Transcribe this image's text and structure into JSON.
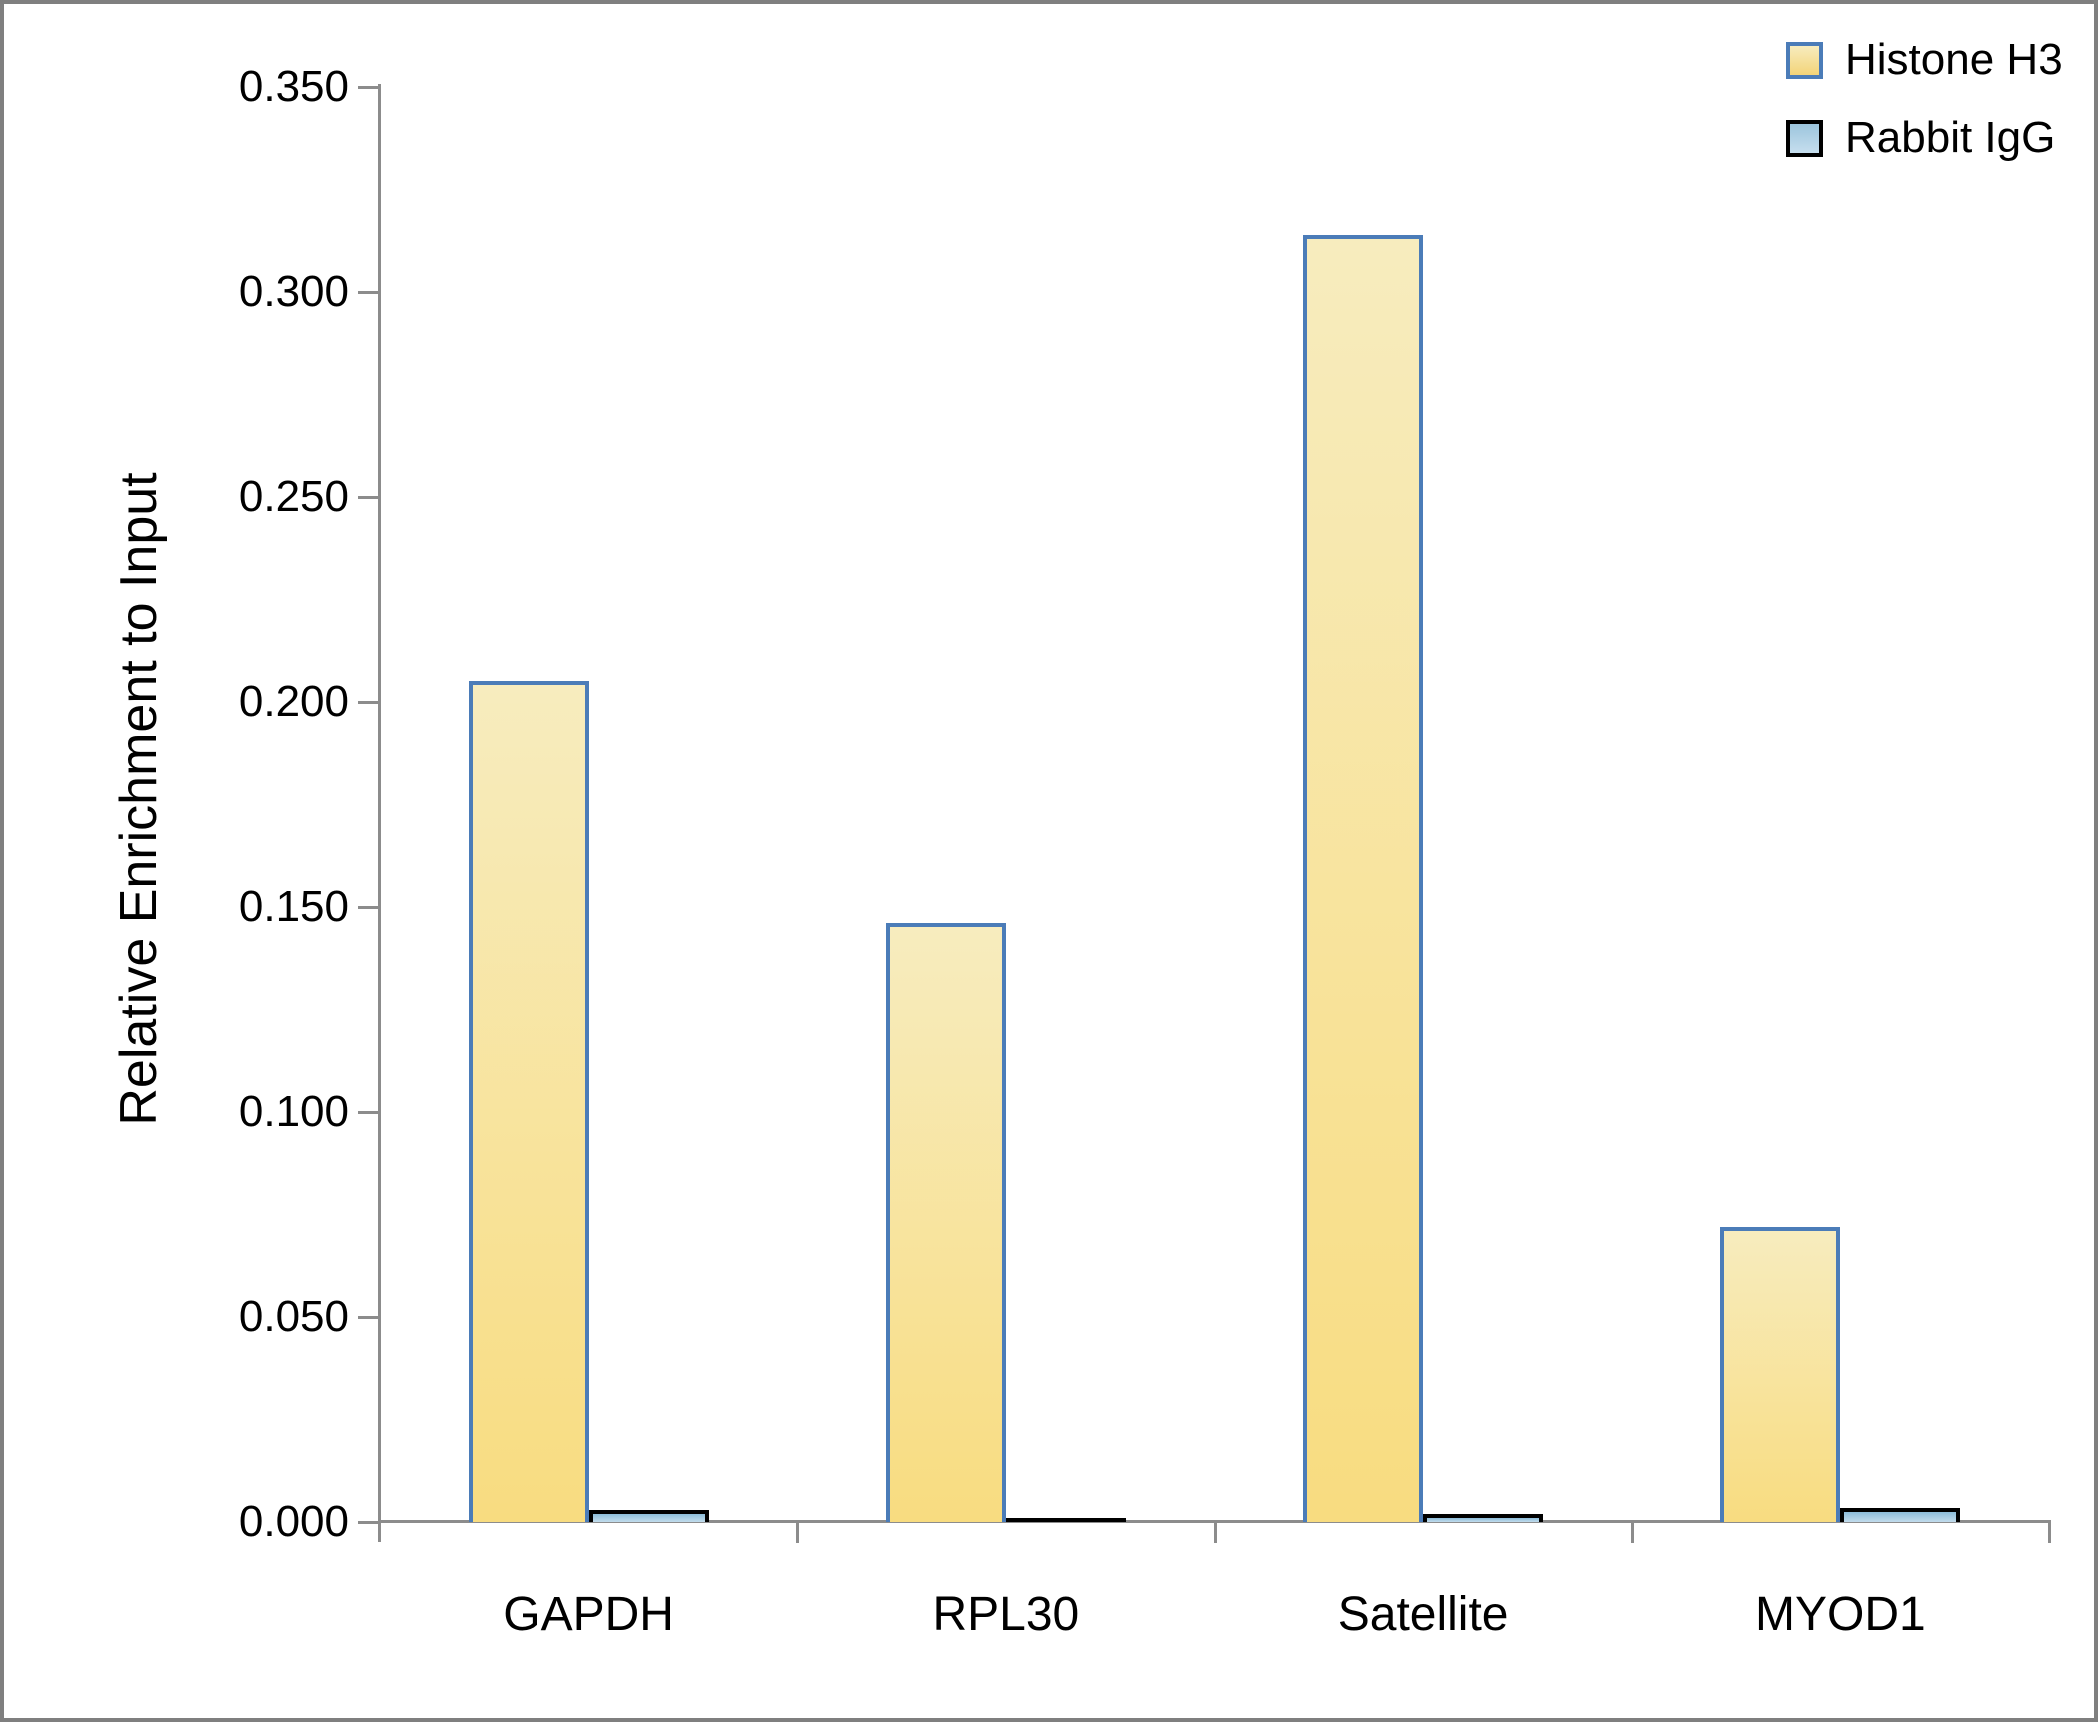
{
  "chart_data": {
    "type": "bar",
    "title": "",
    "xlabel": "",
    "ylabel": "Relative Enrichment to Input",
    "categories": [
      "GAPDH",
      "RPL30",
      "Satellite",
      "MYOD1"
    ],
    "series": [
      {
        "name": "Histone H3",
        "values": [
          0.205,
          0.146,
          0.314,
          0.072
        ],
        "fill_top": "#f7ecbe",
        "fill_bottom": "#f8dc80",
        "border_color": "#4b7cb8"
      },
      {
        "name": "Rabbit IgG",
        "values": [
          0.003,
          0.001,
          0.002,
          0.0035
        ],
        "fill_top": "#8cbcd9",
        "fill_bottom": "#c2dcec",
        "border_color": "#000000"
      }
    ],
    "ylim": [
      0,
      0.35
    ],
    "y_tick_step": 0.05,
    "y_tick_labels": [
      "0.000",
      "0.050",
      "0.100",
      "0.150",
      "0.200",
      "0.250",
      "0.300",
      "0.350"
    ],
    "grid": false,
    "legend_position": "top-right",
    "axis_color": "#8c8c8c",
    "frame_color": "#7f7f7f"
  }
}
